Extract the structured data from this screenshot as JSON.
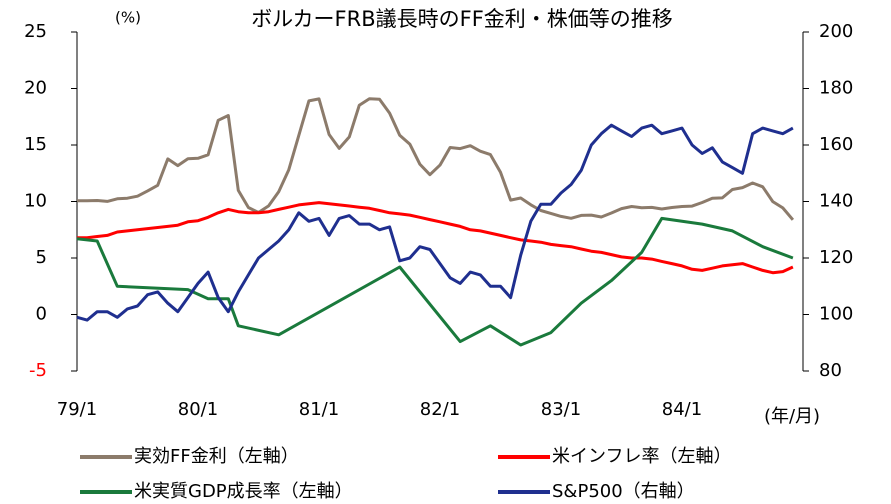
{
  "chart_data": {
    "type": "line",
    "title": "ボルカーFRB議長時のFF金利・株価等の推移",
    "y_label": "(%)",
    "x_label": "(年/月)",
    "x": [
      "79/1",
      "79/2",
      "79/3",
      "79/4",
      "79/5",
      "79/6",
      "79/7",
      "79/8",
      "79/9",
      "79/10",
      "79/11",
      "79/12",
      "80/1",
      "80/2",
      "80/3",
      "80/4",
      "80/5",
      "80/6",
      "80/7",
      "80/8",
      "80/9",
      "80/10",
      "80/11",
      "80/12",
      "81/1",
      "81/2",
      "81/3",
      "81/4",
      "81/5",
      "81/6",
      "81/7",
      "81/8",
      "81/9",
      "81/10",
      "81/11",
      "81/12",
      "82/1",
      "82/2",
      "82/3",
      "82/4",
      "82/5",
      "82/6",
      "82/7",
      "82/8",
      "82/9",
      "82/10",
      "82/11",
      "82/12",
      "83/1",
      "83/2",
      "83/3",
      "83/4",
      "83/5",
      "83/6",
      "83/7",
      "83/8",
      "83/9",
      "83/10",
      "83/11",
      "83/12",
      "84/1",
      "84/2",
      "84/3",
      "84/4",
      "84/5",
      "84/6",
      "84/7",
      "84/8",
      "84/9",
      "84/10",
      "84/11",
      "84/12"
    ],
    "xlim": [
      "79/1",
      "85/1"
    ],
    "xticks": [
      "79/1",
      "80/1",
      "81/1",
      "82/1",
      "83/1",
      "84/1"
    ],
    "ylim": [
      -5,
      25
    ],
    "yticks": [
      -5,
      0,
      5,
      10,
      15,
      20,
      25
    ],
    "y2lim": [
      80,
      200
    ],
    "y2ticks": [
      80,
      100,
      120,
      140,
      160,
      180,
      200
    ],
    "negative_tick_color": "#ff0000",
    "legend": "bottom",
    "series": [
      {
        "name": "実効FF金利（左軸）",
        "color": "#8c7b6b",
        "values": [
          10.07,
          10.06,
          10.09,
          10.01,
          10.24,
          10.29,
          10.47,
          10.94,
          11.43,
          13.77,
          13.18,
          13.78,
          13.82,
          14.13,
          17.19,
          17.61,
          10.98,
          9.47,
          9.03,
          9.61,
          10.87,
          12.81,
          15.85,
          18.9,
          19.08,
          15.93,
          14.7,
          15.72,
          18.52,
          19.1,
          19.04,
          17.82,
          15.87,
          15.08,
          13.31,
          12.37,
          13.22,
          14.78,
          14.68,
          14.94,
          14.45,
          14.15,
          12.59,
          10.12,
          10.31,
          9.71,
          9.2,
          8.95,
          8.68,
          8.51,
          8.77,
          8.8,
          8.63,
          8.98,
          9.37,
          9.56,
          9.45,
          9.48,
          9.34,
          9.47,
          9.56,
          9.59,
          9.91,
          10.29,
          10.32,
          11.06,
          11.23,
          11.64,
          11.3,
          9.99,
          9.43,
          8.38
        ]
      },
      {
        "name": "米インフレ率（左軸）",
        "color": "#ff0000",
        "values": [
          6.8,
          6.8,
          6.9,
          7.0,
          7.3,
          7.4,
          7.5,
          7.6,
          7.7,
          7.8,
          7.9,
          8.2,
          8.3,
          8.6,
          9.0,
          9.3,
          9.1,
          9.0,
          9.0,
          9.1,
          9.3,
          9.5,
          9.7,
          9.8,
          9.9,
          9.8,
          9.7,
          9.6,
          9.5,
          9.4,
          9.2,
          9.0,
          8.9,
          8.8,
          8.6,
          8.4,
          8.2,
          8.0,
          7.8,
          7.5,
          7.4,
          7.2,
          7.0,
          6.8,
          6.6,
          6.5,
          6.4,
          6.2,
          6.1,
          6.0,
          5.8,
          5.6,
          5.5,
          5.3,
          5.1,
          5.0,
          5.0,
          4.9,
          4.7,
          4.5,
          4.3,
          4.0,
          3.9,
          4.1,
          4.3,
          4.4,
          4.5,
          4.2,
          3.9,
          3.7,
          3.8,
          4.2
        ]
      },
      {
        "name": "米実質GDP成長率（左軸）",
        "color": "#1a7a3c",
        "x": [
          "79/1",
          "79/3",
          "79/5",
          "79/12",
          "80/2",
          "80/4",
          "80/5",
          "80/9",
          "81/9",
          "82/3",
          "82/6",
          "82/9",
          "82/12",
          "83/3",
          "83/6",
          "83/9",
          "83/11",
          "84/3",
          "84/6",
          "84/9",
          "84/12"
        ],
        "values": [
          6.7,
          6.5,
          2.5,
          2.2,
          1.4,
          1.4,
          -1.0,
          -1.8,
          4.2,
          -2.4,
          -1.0,
          -2.7,
          -1.6,
          1.0,
          3.0,
          5.5,
          8.5,
          8.0,
          7.4,
          6.0,
          5.0
        ]
      },
      {
        "name": "S&P500（右軸）",
        "color": "#1f2f8f",
        "axis": "y2",
        "values": [
          99,
          98,
          101,
          101,
          99,
          102,
          103,
          107,
          108,
          104,
          101,
          106,
          111,
          115,
          106,
          101,
          108,
          114,
          120,
          123,
          126,
          130,
          136,
          133,
          134,
          128,
          134,
          135,
          132,
          132,
          130,
          131,
          119,
          120,
          124,
          123,
          118,
          113,
          111,
          115,
          114,
          110,
          110,
          106,
          121,
          133,
          139,
          139,
          143,
          146,
          151,
          160,
          164,
          167,
          165,
          163,
          166,
          167,
          164,
          165,
          166,
          160,
          157,
          159,
          154,
          152,
          150,
          164,
          166,
          165,
          164,
          166
        ]
      }
    ]
  }
}
